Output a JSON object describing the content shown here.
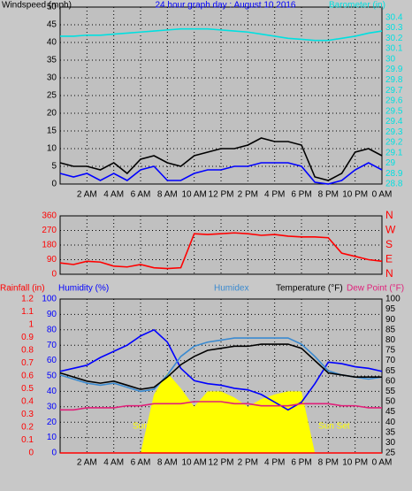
{
  "chart_data": [
    {
      "type": "line",
      "title": "24 hour graph day : August 10 2016",
      "x": [
        0,
        1,
        2,
        3,
        4,
        5,
        6,
        7,
        8,
        9,
        10,
        11,
        12,
        13,
        14,
        15,
        16,
        17,
        18,
        19,
        20,
        21,
        22,
        23,
        24
      ],
      "xlim": [
        0,
        24
      ],
      "xticks": [
        {
          "value": 2,
          "label": "2 AM"
        },
        {
          "value": 4,
          "label": "4 AM"
        },
        {
          "value": 6,
          "label": "6 AM"
        },
        {
          "value": 8,
          "label": "8 AM"
        },
        {
          "value": 10,
          "label": "10 AM"
        },
        {
          "value": 12,
          "label": "12 PM"
        },
        {
          "value": 14,
          "label": "2 PM"
        },
        {
          "value": 16,
          "label": "4 PM"
        },
        {
          "value": 18,
          "label": "6 PM"
        },
        {
          "value": 20,
          "label": "8 PM"
        },
        {
          "value": 22,
          "label": "10 PM"
        },
        {
          "value": 24,
          "label": "0 AM"
        }
      ],
      "ylim": [
        0,
        50
      ],
      "yticks": [
        0,
        5,
        10,
        15,
        20,
        25,
        30,
        35,
        40,
        45,
        50
      ],
      "y2lim": [
        28.8,
        30.5
      ],
      "y2ticks": [
        28.8,
        28.9,
        29,
        29.1,
        29.2,
        29.3,
        29.4,
        29.5,
        29.6,
        29.7,
        29.8,
        29.9,
        30,
        30.1,
        30.2,
        30.3,
        30.4
      ],
      "y_color": "#000000",
      "y2_color": "#00e0e0",
      "title_color": "#0000ff",
      "grid": true,
      "series": [
        {
          "name": "Windspeed (mph)",
          "color": "#000000",
          "values": [
            6,
            5,
            5,
            4,
            6,
            3,
            7,
            8,
            6,
            5,
            8,
            9,
            10,
            10,
            11,
            13,
            12,
            12,
            11,
            2,
            1,
            3,
            9,
            10,
            8
          ]
        },
        {
          "color": "#0000ff",
          "values": [
            3,
            2,
            3,
            1,
            3,
            1,
            4,
            5,
            1,
            1,
            3,
            4,
            4,
            5,
            5,
            6,
            6,
            6,
            5,
            0.5,
            0,
            1,
            4,
            6,
            4
          ]
        },
        {
          "name": "Barometer (in)",
          "color": "#00e0e0",
          "axis": "y2",
          "values": [
            30.22,
            30.22,
            30.23,
            30.23,
            30.24,
            30.25,
            30.26,
            30.27,
            30.28,
            30.29,
            30.29,
            30.29,
            30.28,
            30.27,
            30.26,
            30.24,
            30.22,
            30.2,
            30.19,
            30.18,
            30.18,
            30.2,
            30.22,
            30.25,
            30.27
          ]
        }
      ]
    },
    {
      "type": "line",
      "x": [
        0,
        1,
        2,
        3,
        4,
        5,
        6,
        7,
        8,
        9,
        10,
        11,
        12,
        13,
        14,
        15,
        16,
        17,
        18,
        19,
        20,
        21,
        22,
        23,
        24
      ],
      "xlim": [
        0,
        24
      ],
      "ylim": [
        0,
        360
      ],
      "yticks": [
        0,
        90,
        180,
        270,
        360
      ],
      "y2lim": [
        0,
        360
      ],
      "y2ticks": [
        {
          "value": 0,
          "label": "N"
        },
        {
          "value": 90,
          "label": "E"
        },
        {
          "value": 180,
          "label": "S"
        },
        {
          "value": 270,
          "label": "W"
        },
        {
          "value": 360,
          "label": "N"
        }
      ],
      "y_color": "#ff0000",
      "y2_color": "#ff0000",
      "grid": true,
      "series": [
        {
          "color": "#ff0000",
          "values": [
            70,
            60,
            80,
            75,
            50,
            45,
            60,
            40,
            35,
            40,
            250,
            245,
            250,
            255,
            250,
            240,
            245,
            235,
            230,
            230,
            225,
            130,
            110,
            90,
            80
          ]
        }
      ]
    },
    {
      "type": "line",
      "x": [
        0,
        1,
        2,
        3,
        4,
        5,
        6,
        7,
        8,
        9,
        10,
        11,
        12,
        13,
        14,
        15,
        16,
        17,
        18,
        19,
        20,
        21,
        22,
        23,
        24
      ],
      "xlim": [
        0,
        24
      ],
      "xticks": [
        {
          "value": 2,
          "label": "2 AM"
        },
        {
          "value": 4,
          "label": "4 AM"
        },
        {
          "value": 6,
          "label": "6 AM"
        },
        {
          "value": 8,
          "label": "8 AM"
        },
        {
          "value": 10,
          "label": "10 AM"
        },
        {
          "value": 12,
          "label": "12 PM"
        },
        {
          "value": 14,
          "label": "2 PM"
        },
        {
          "value": 16,
          "label": "4 PM"
        },
        {
          "value": 18,
          "label": "6 PM"
        },
        {
          "value": 20,
          "label": "8 PM"
        },
        {
          "value": 22,
          "label": "10 PM"
        },
        {
          "value": 24,
          "label": "0 AM"
        }
      ],
      "ylim": [
        0,
        100
      ],
      "yticks": [
        0,
        10,
        20,
        30,
        40,
        50,
        60,
        70,
        80,
        90,
        100
      ],
      "y2lim": [
        25,
        100
      ],
      "y2ticks": [
        25,
        30,
        35,
        40,
        45,
        50,
        55,
        60,
        65,
        70,
        75,
        80,
        85,
        90,
        95,
        100
      ],
      "y3lim": [
        0,
        1.2
      ],
      "y3ticks": [
        0,
        0.1,
        0.2,
        0.3,
        0.4,
        0.5,
        0.6,
        0.7,
        0.8,
        0.9,
        1,
        1.1,
        1.2
      ],
      "y_color": "#0000ff",
      "y2_color": "#000000",
      "y3_color": "#ff0000",
      "grid": true,
      "annotations": [
        "Sun Rise",
        "Sun Set"
      ],
      "series": [
        {
          "kind": "area",
          "color": "#ffff00",
          "values": [
            0,
            0,
            0,
            0,
            0,
            0,
            0,
            38,
            52,
            42,
            30,
            40,
            40,
            36,
            30,
            35,
            38,
            40,
            40,
            0,
            0,
            0,
            0,
            0,
            0
          ]
        },
        {
          "name": "Rainfall (in)",
          "color": "#ff0000",
          "axis": "y3",
          "values": [
            0,
            0,
            0,
            0,
            0,
            0,
            0,
            0,
            0,
            0,
            0,
            0,
            0,
            0,
            0,
            0,
            0,
            0,
            0,
            0,
            0,
            0,
            0,
            0,
            0
          ]
        },
        {
          "name": "Humidity (%)",
          "color": "#0000ff",
          "values": [
            53,
            55,
            57,
            62,
            66,
            70,
            76,
            80,
            72,
            55,
            47,
            45,
            44,
            42,
            41,
            38,
            33,
            28,
            33,
            45,
            59,
            58,
            56,
            55,
            53
          ]
        },
        {
          "name": "Humidex",
          "color": "#3a8ad0",
          "axis": "y2",
          "values": [
            63,
            61,
            59,
            58,
            59,
            57,
            55,
            56,
            63,
            72,
            77,
            79,
            80,
            81,
            81,
            81,
            81,
            81,
            78,
            72,
            65,
            63,
            62,
            61,
            62
          ]
        },
        {
          "name": "Temperature (°F)",
          "color": "#000000",
          "axis": "y2",
          "values": [
            64,
            62,
            60,
            59,
            60,
            58,
            56,
            57,
            62,
            68,
            72,
            75,
            76,
            77,
            77,
            78,
            78,
            78,
            76,
            70,
            64,
            63,
            62,
            62,
            62
          ]
        },
        {
          "name": "Dew Point (°F)",
          "color": "#e0207a",
          "axis": "y2",
          "values": [
            46,
            46,
            47,
            47,
            47,
            48,
            48,
            49,
            49,
            49,
            50,
            50,
            50,
            49,
            49,
            48,
            48,
            48,
            49,
            49,
            49,
            48,
            48,
            47,
            47
          ]
        }
      ]
    }
  ]
}
